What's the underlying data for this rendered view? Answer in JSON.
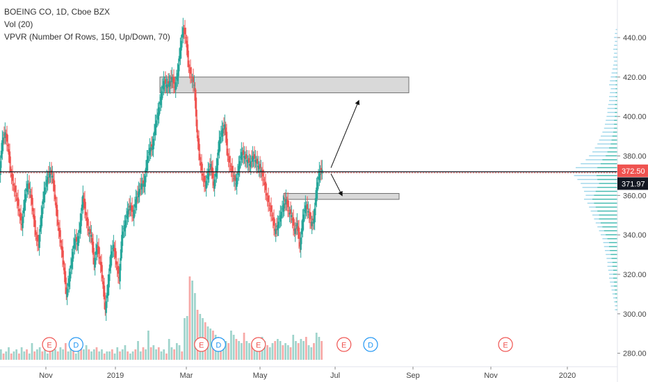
{
  "legend": {
    "title": "BOEING CO, 1D, Cboe BZX",
    "vol": "Vol (20)",
    "vpvr": "VPVR (Number Of Rows, 150, Up/Down, 70)"
  },
  "price_tags": {
    "last_label": "372.50",
    "line_label": "371.97"
  },
  "colors": {
    "up": "#26a69a",
    "down": "#ef5350",
    "vol_up": "#9fd4cc",
    "vol_down": "#f7a9a7",
    "vpvr_up": "#7ec8e3",
    "vpvr_down": "#2fb5a3",
    "last_tag": "#ef5350",
    "line_tag": "#131722",
    "zone_fill": "#d3d3d3",
    "event_red": "#ef5350",
    "event_blue": "#2196f3"
  },
  "chart_data": {
    "type": "candlestick",
    "symbol": "BOEING CO",
    "interval": "1D",
    "exchange": "Cboe BZX",
    "y_ticks": [
      "440.00",
      "420.00",
      "400.00",
      "380.00",
      "360.00",
      "340.00",
      "320.00",
      "300.00",
      "280.00"
    ],
    "x_ticks": [
      "Nov",
      "2019",
      "Mar",
      "May",
      "Jul",
      "Sep",
      "Nov",
      "2020"
    ],
    "ylim": [
      276,
      452
    ],
    "last_price": 372.5,
    "horizontal_line": 371.97,
    "price_path": [
      [
        0,
        372
      ],
      [
        4,
        388
      ],
      [
        8,
        392
      ],
      [
        12,
        385
      ],
      [
        16,
        372
      ],
      [
        20,
        365
      ],
      [
        24,
        360
      ],
      [
        28,
        352
      ],
      [
        32,
        345
      ],
      [
        36,
        358
      ],
      [
        40,
        366
      ],
      [
        44,
        362
      ],
      [
        48,
        352
      ],
      [
        52,
        340
      ],
      [
        56,
        335
      ],
      [
        60,
        350
      ],
      [
        64,
        362
      ],
      [
        68,
        368
      ],
      [
        72,
        372
      ],
      [
        76,
        370
      ],
      [
        80,
        358
      ],
      [
        84,
        345
      ],
      [
        88,
        336
      ],
      [
        92,
        325
      ],
      [
        96,
        310
      ],
      [
        100,
        318
      ],
      [
        104,
        328
      ],
      [
        108,
        338
      ],
      [
        112,
        336
      ],
      [
        116,
        346
      ],
      [
        120,
        360
      ],
      [
        124,
        350
      ],
      [
        128,
        342
      ],
      [
        132,
        340
      ],
      [
        136,
        325
      ],
      [
        140,
        335
      ],
      [
        144,
        328
      ],
      [
        148,
        318
      ],
      [
        152,
        302
      ],
      [
        156,
        315
      ],
      [
        160,
        330
      ],
      [
        164,
        335
      ],
      [
        168,
        325
      ],
      [
        172,
        318
      ],
      [
        176,
        340
      ],
      [
        180,
        345
      ],
      [
        184,
        352
      ],
      [
        188,
        355
      ],
      [
        192,
        350
      ],
      [
        196,
        358
      ],
      [
        200,
        362
      ],
      [
        204,
        366
      ],
      [
        208,
        366
      ],
      [
        212,
        378
      ],
      [
        216,
        384
      ],
      [
        220,
        385
      ],
      [
        224,
        396
      ],
      [
        228,
        402
      ],
      [
        232,
        410
      ],
      [
        236,
        418
      ],
      [
        240,
        416
      ],
      [
        244,
        417
      ],
      [
        248,
        420
      ],
      [
        252,
        415
      ],
      [
        256,
        422
      ],
      [
        260,
        435
      ],
      [
        264,
        445
      ],
      [
        268,
        440
      ],
      [
        272,
        425
      ],
      [
        276,
        420
      ],
      [
        280,
        416
      ],
      [
        284,
        392
      ],
      [
        288,
        378
      ],
      [
        292,
        370
      ],
      [
        296,
        365
      ],
      [
        300,
        372
      ],
      [
        304,
        376
      ],
      [
        308,
        365
      ],
      [
        312,
        374
      ],
      [
        316,
        388
      ],
      [
        320,
        393
      ],
      [
        324,
        396
      ],
      [
        328,
        380
      ],
      [
        332,
        375
      ],
      [
        336,
        370
      ],
      [
        340,
        366
      ],
      [
        344,
        375
      ],
      [
        348,
        382
      ],
      [
        352,
        380
      ],
      [
        356,
        378
      ],
      [
        360,
        376
      ],
      [
        364,
        380
      ],
      [
        368,
        378
      ],
      [
        372,
        375
      ],
      [
        376,
        373
      ],
      [
        380,
        368
      ],
      [
        384,
        360
      ],
      [
        388,
        355
      ],
      [
        392,
        350
      ],
      [
        396,
        342
      ],
      [
        400,
        345
      ],
      [
        404,
        350
      ],
      [
        408,
        355
      ],
      [
        412,
        358
      ],
      [
        416,
        352
      ],
      [
        420,
        350
      ],
      [
        424,
        342
      ],
      [
        428,
        346
      ],
      [
        432,
        334
      ],
      [
        436,
        348
      ],
      [
        440,
        355
      ],
      [
        444,
        352
      ],
      [
        448,
        346
      ],
      [
        452,
        348
      ],
      [
        456,
        364
      ],
      [
        460,
        372
      ],
      [
        464,
        373
      ]
    ],
    "volume": [
      5,
      3,
      4,
      6,
      3,
      4,
      5,
      3,
      6,
      4,
      5,
      3,
      8,
      4,
      5,
      6,
      4,
      5,
      3,
      4,
      7,
      5,
      4,
      6,
      5,
      8,
      4,
      6,
      5,
      3,
      4,
      6,
      5,
      7,
      5,
      4,
      5,
      6,
      4,
      5,
      3,
      4,
      4,
      5,
      3,
      6,
      4,
      5,
      7,
      4,
      3,
      4,
      5,
      9,
      4,
      6,
      5,
      14,
      6,
      7,
      5,
      6,
      4,
      5,
      3,
      10,
      6,
      5,
      8,
      7,
      4,
      20,
      21,
      40,
      38,
      32,
      24,
      22,
      20,
      18,
      16,
      15,
      14,
      12,
      11,
      10,
      10,
      9,
      8,
      14,
      12,
      10,
      9,
      8,
      13,
      9,
      8,
      7,
      9,
      8,
      10,
      11,
      9,
      7,
      6,
      8,
      9,
      10,
      9,
      7,
      8,
      7,
      6,
      12,
      9,
      8,
      10,
      9,
      11,
      7,
      6,
      8,
      13,
      11,
      9
    ],
    "vpvr": [
      [
        444,
        2,
        0
      ],
      [
        442,
        3,
        0
      ],
      [
        440,
        4,
        0
      ],
      [
        438,
        3,
        0
      ],
      [
        436,
        4,
        0
      ],
      [
        434,
        5,
        1
      ],
      [
        432,
        4,
        0
      ],
      [
        430,
        5,
        1
      ],
      [
        428,
        4,
        0
      ],
      [
        426,
        5,
        1
      ],
      [
        424,
        6,
        1
      ],
      [
        422,
        7,
        1
      ],
      [
        420,
        8,
        2
      ],
      [
        418,
        9,
        2
      ],
      [
        416,
        10,
        2
      ],
      [
        414,
        8,
        2
      ],
      [
        412,
        9,
        2
      ],
      [
        410,
        10,
        2
      ],
      [
        408,
        10,
        2
      ],
      [
        406,
        11,
        3
      ],
      [
        404,
        12,
        3
      ],
      [
        402,
        12,
        3
      ],
      [
        400,
        13,
        3
      ],
      [
        398,
        14,
        4
      ],
      [
        396,
        15,
        4
      ],
      [
        394,
        16,
        4
      ],
      [
        392,
        18,
        5
      ],
      [
        390,
        20,
        6
      ],
      [
        388,
        22,
        7
      ],
      [
        386,
        24,
        8
      ],
      [
        384,
        27,
        10
      ],
      [
        382,
        30,
        12
      ],
      [
        380,
        34,
        14
      ],
      [
        378,
        38,
        18
      ],
      [
        376,
        44,
        20
      ],
      [
        374,
        50,
        24
      ],
      [
        372,
        55,
        26
      ],
      [
        370,
        52,
        25
      ],
      [
        368,
        48,
        24
      ],
      [
        366,
        44,
        22
      ],
      [
        364,
        42,
        24
      ],
      [
        362,
        40,
        26
      ],
      [
        360,
        38,
        28
      ],
      [
        358,
        40,
        30
      ],
      [
        356,
        36,
        28
      ],
      [
        354,
        34,
        26
      ],
      [
        352,
        32,
        24
      ],
      [
        350,
        30,
        22
      ],
      [
        348,
        28,
        22
      ],
      [
        346,
        26,
        20
      ],
      [
        344,
        24,
        18
      ],
      [
        342,
        22,
        16
      ],
      [
        340,
        20,
        14
      ],
      [
        338,
        18,
        12
      ],
      [
        336,
        17,
        10
      ],
      [
        334,
        16,
        10
      ],
      [
        332,
        15,
        9
      ],
      [
        330,
        14,
        8
      ],
      [
        328,
        13,
        7
      ],
      [
        326,
        12,
        6
      ],
      [
        324,
        12,
        6
      ],
      [
        322,
        11,
        5
      ],
      [
        320,
        10,
        5
      ],
      [
        318,
        10,
        5
      ],
      [
        316,
        9,
        4
      ],
      [
        314,
        8,
        4
      ],
      [
        312,
        7,
        3
      ],
      [
        310,
        6,
        3
      ],
      [
        308,
        5,
        2
      ],
      [
        306,
        4,
        2
      ],
      [
        304,
        3,
        1
      ],
      [
        302,
        3,
        1
      ]
    ],
    "zones": [
      {
        "x_from": 230,
        "x_to": 588,
        "y_top": 420,
        "y_bottom": 412
      },
      {
        "x_from": 408,
        "x_to": 574,
        "y_top": 361,
        "y_bottom": 358
      }
    ],
    "arrows": [
      {
        "from": [
          476,
          374
        ],
        "to": [
          516,
          408
        ]
      },
      {
        "from": [
          476,
          371
        ],
        "to": [
          492,
          360
        ]
      }
    ],
    "events": [
      {
        "label": "E",
        "kind": "earnings",
        "x_day": 52
      },
      {
        "label": "D",
        "kind": "dividend",
        "x_day": 80
      },
      {
        "label": "E",
        "kind": "earnings",
        "x_day": 212
      },
      {
        "label": "D",
        "kind": "dividend",
        "x_day": 230
      },
      {
        "label": "E",
        "kind": "earnings",
        "x_day": 272
      },
      {
        "label": "E",
        "kind": "earnings",
        "x_day": 362
      },
      {
        "label": "D",
        "kind": "dividend",
        "x_day": 390
      },
      {
        "label": "E",
        "kind": "earnings",
        "x_day": 532
      }
    ]
  }
}
